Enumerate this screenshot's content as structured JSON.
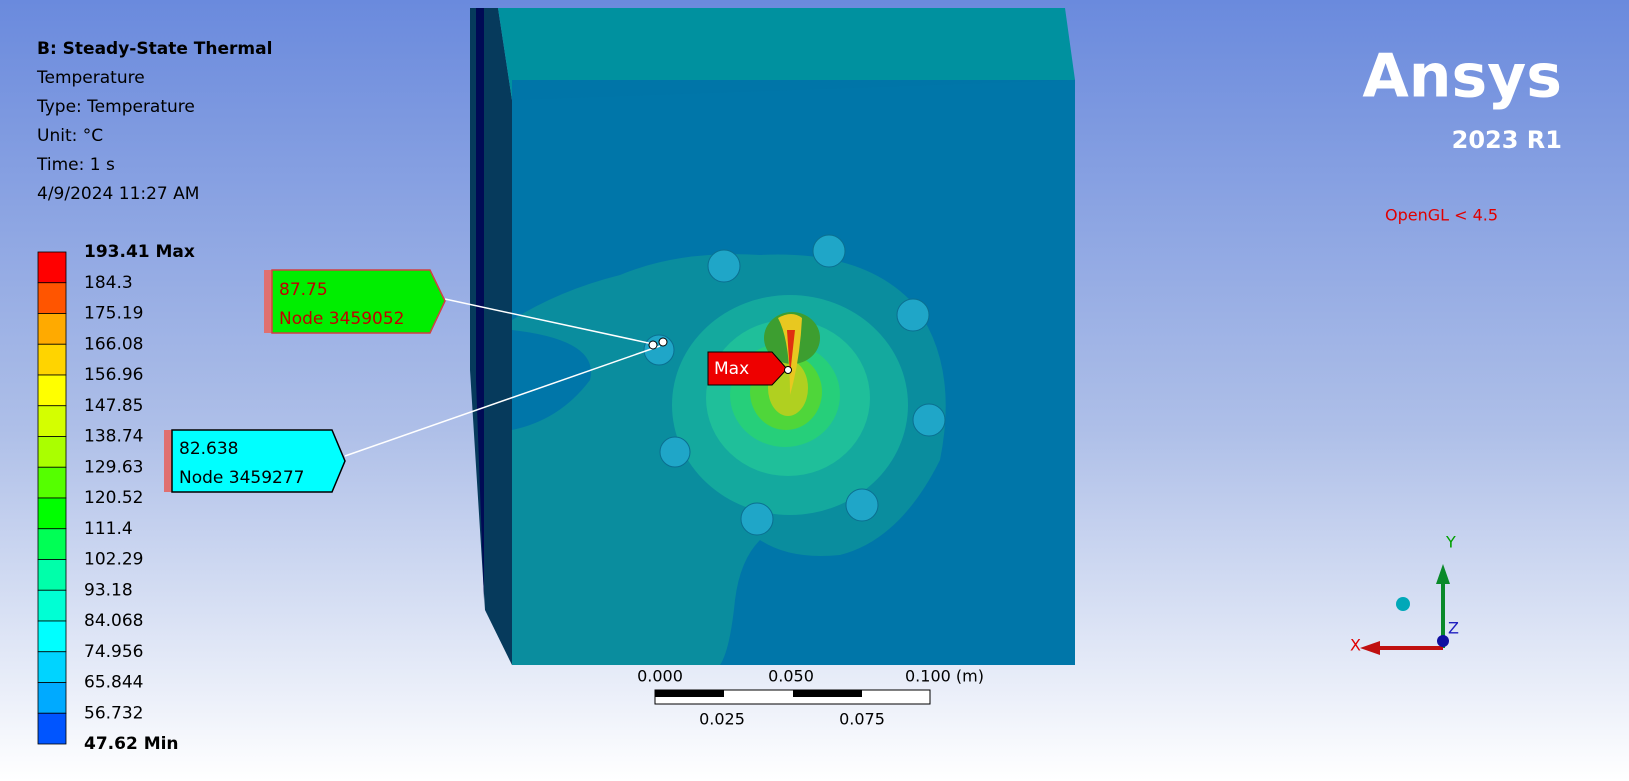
{
  "header": {
    "title": "B: Steady-State Thermal",
    "lines": [
      "Temperature",
      "Type: Temperature",
      "Unit: °C",
      "Time: 1 s",
      "4/9/2024 11:27 AM"
    ]
  },
  "legend": {
    "labels": [
      "193.41 Max",
      "184.3",
      "175.19",
      "166.08",
      "156.96",
      "147.85",
      "138.74",
      "129.63",
      "120.52",
      "111.4",
      "102.29",
      "93.18",
      "84.068",
      "74.956",
      "65.844",
      "56.732",
      "47.62 Min"
    ],
    "colors": [
      "#ff0000",
      "#ff5500",
      "#ffaa00",
      "#ffd400",
      "#ffff00",
      "#d4ff00",
      "#aaff00",
      "#55ff00",
      "#00ff00",
      "#00ff55",
      "#00ffaa",
      "#00ffd4",
      "#00ffff",
      "#00d4ff",
      "#00aaff",
      "#0055ff",
      "#0000ff"
    ]
  },
  "probes": [
    {
      "value": "87.75",
      "node": "Node 3459052"
    },
    {
      "value": "82.638",
      "node": "Node 3459277"
    }
  ],
  "max_label": "Max",
  "logo": {
    "name": "Ansys",
    "version": "2023 R1"
  },
  "renderer_note": "OpenGL < 4.5",
  "scale_bar": {
    "top_labels": [
      "0.000",
      "0.050",
      "0.100 (m)"
    ],
    "bottom_labels": [
      "0.025",
      "0.075"
    ]
  },
  "triad": {
    "x": "X",
    "y": "Y",
    "z": "Z"
  }
}
